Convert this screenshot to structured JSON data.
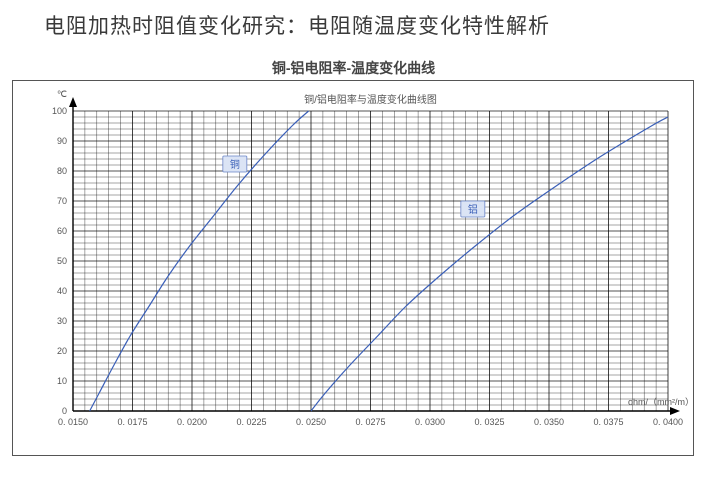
{
  "page": {
    "title": "电阻加热时阻值变化研究：电阻随温度变化特性解析",
    "subtitle": "铜-铝电阻率-温度变化曲线",
    "inner_title": "铜/铝电阻率与温度变化曲线图"
  },
  "chart": {
    "type": "line",
    "background_color": "#ffffff",
    "frame_border_color": "#555555",
    "grid_major_color": "#000000",
    "grid_minor_color": "#000000",
    "grid_major_width": 0.6,
    "grid_minor_width": 0.35,
    "curve_color": "#3a5fb8",
    "curve_width": 1.2,
    "label_box_bg": "#dbe4f5",
    "label_box_border": "#6a85c8",
    "label_text_color": "#3a5fb8",
    "tick_font_size": 9,
    "tick_color": "#555555",
    "inner_title_fontsize": 10,
    "inner_title_color": "#555555",
    "y_axis": {
      "label": "℃",
      "min": 0,
      "max": 100,
      "major_step": 10,
      "minor_per_major": 5,
      "ticks": [
        0,
        10,
        20,
        30,
        40,
        50,
        60,
        70,
        80,
        90,
        100
      ]
    },
    "x_axis": {
      "label": "ohm/（mm²/m）",
      "min": 0.015,
      "max": 0.04,
      "major_step": 0.0025,
      "minor_per_major": 5,
      "tick_labels": [
        "0. 0150",
        "0. 0175",
        "0. 0200",
        "0. 0225",
        "0. 0250",
        "0. 0275",
        "0. 0300",
        "0. 0325",
        "0. 0350",
        "0. 0375",
        "0. 0400"
      ]
    },
    "series": [
      {
        "name": "铜",
        "label": "铜",
        "label_pos_xy": [
          0.0218,
          82
        ],
        "points": [
          [
            0.0157,
            0
          ],
          [
            0.0161,
            6
          ],
          [
            0.0167,
            15
          ],
          [
            0.0174,
            25
          ],
          [
            0.0182,
            35
          ],
          [
            0.019,
            45
          ],
          [
            0.0199,
            55
          ],
          [
            0.0209,
            65
          ],
          [
            0.0219,
            75
          ],
          [
            0.023,
            85
          ],
          [
            0.0242,
            95
          ],
          [
            0.0249,
            100
          ]
        ]
      },
      {
        "name": "铝",
        "label": "铝",
        "label_pos_xy": [
          0.0318,
          67
        ],
        "points": [
          [
            0.025,
            0
          ],
          [
            0.0256,
            6
          ],
          [
            0.0266,
            15
          ],
          [
            0.0278,
            25
          ],
          [
            0.029,
            35
          ],
          [
            0.0304,
            45
          ],
          [
            0.0319,
            55
          ],
          [
            0.0335,
            65
          ],
          [
            0.0353,
            75
          ],
          [
            0.0372,
            85
          ],
          [
            0.0393,
            95
          ],
          [
            0.04,
            98
          ]
        ]
      }
    ]
  }
}
